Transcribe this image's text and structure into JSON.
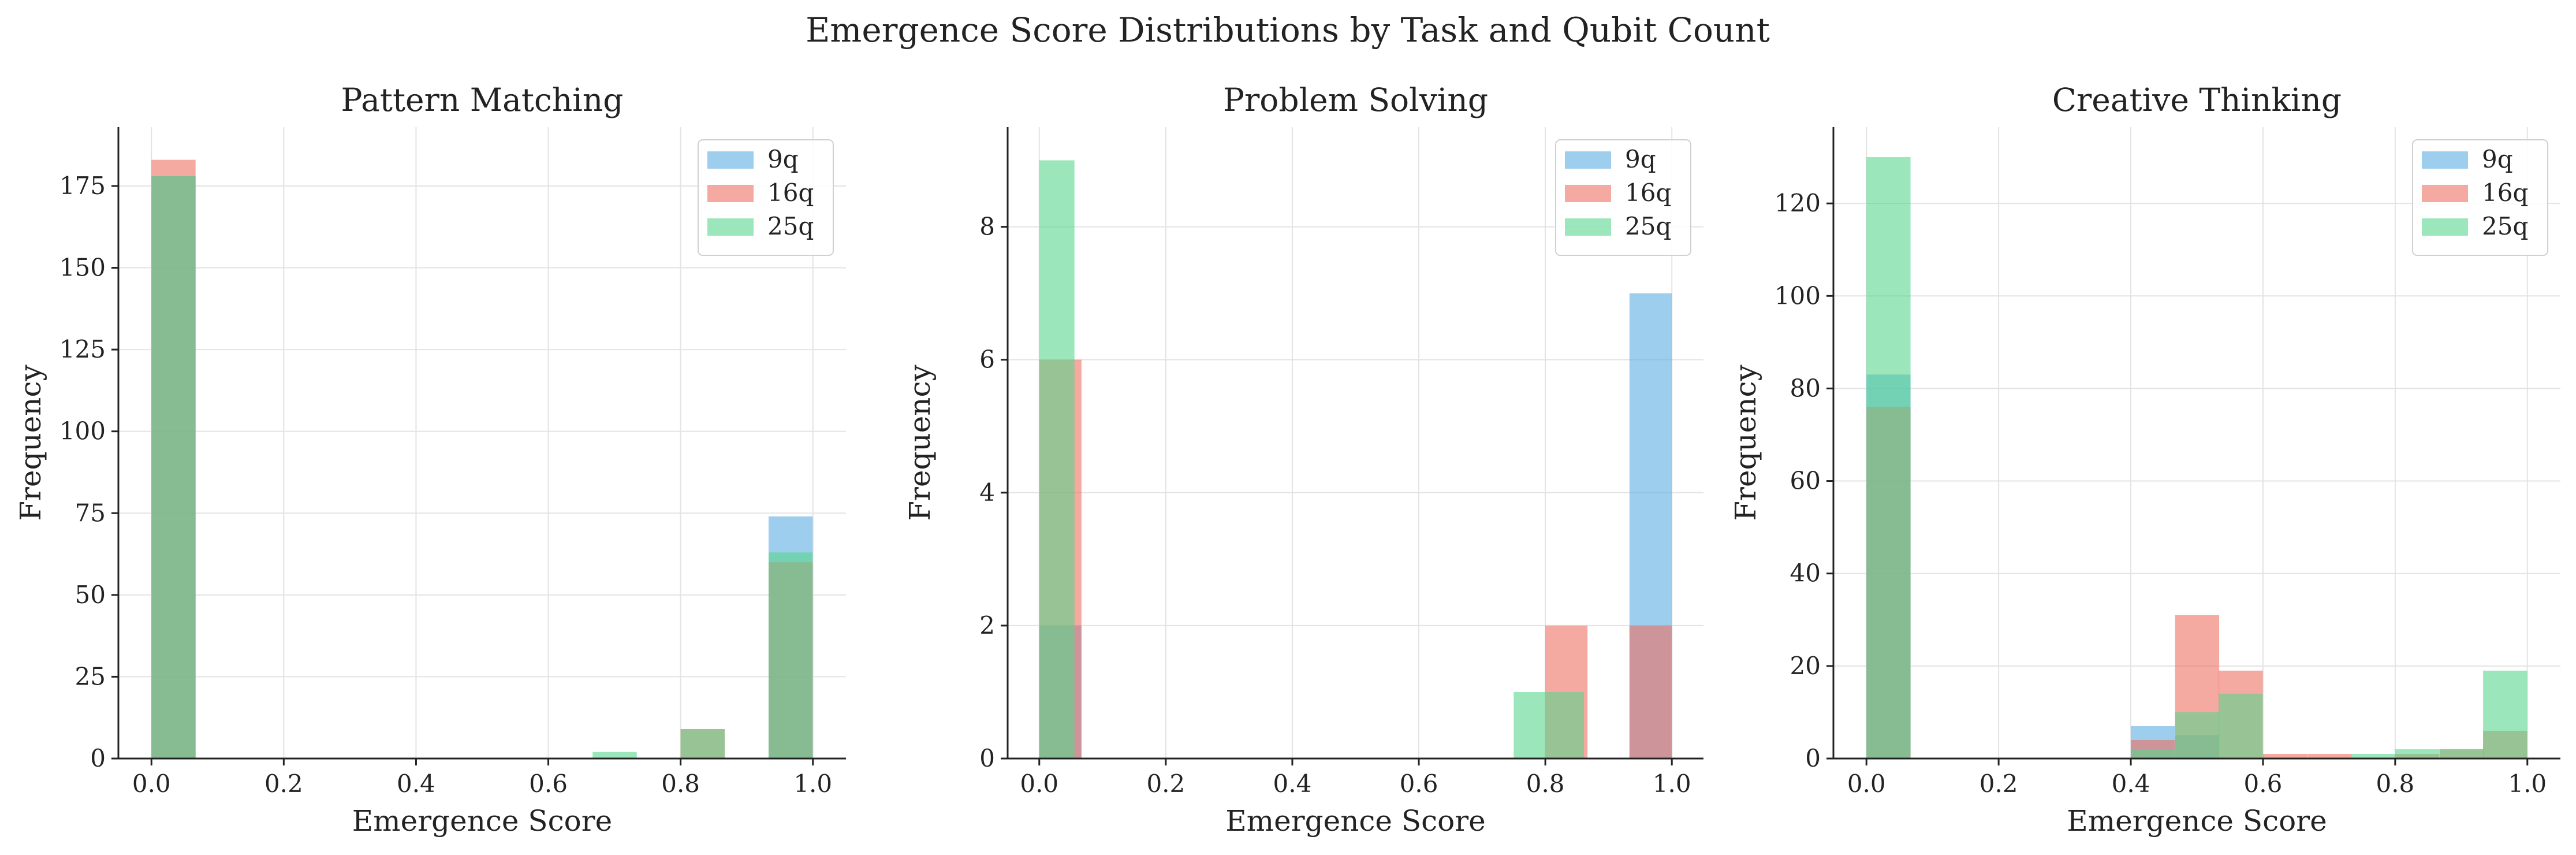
{
  "figure": {
    "title": "Emergence Score Distributions by Task and Qubit Count"
  },
  "colors": {
    "9q": "#5DADE2",
    "16q": "#EC7063",
    "25q": "#58D68D",
    "grid": "#e3e3e3",
    "axis": "#222222"
  },
  "chart_data": [
    {
      "type": "histogram",
      "title": "Pattern Matching",
      "xlabel": "Emergence Score",
      "ylabel": "Frequency",
      "xlim": [
        -0.05,
        1.05
      ],
      "ylim": [
        0,
        193
      ],
      "xticks": [
        0.0,
        0.2,
        0.4,
        0.6,
        0.8,
        1.0
      ],
      "yticks": [
        0,
        25,
        50,
        75,
        100,
        125,
        150,
        175
      ],
      "tick_format": "int",
      "grid": true,
      "legend_position": "top-right",
      "bin_width": 0.0667,
      "series": [
        {
          "name": "9q",
          "color_key": "9q",
          "bins": [
            {
              "x": 0.0,
              "y": 178
            },
            {
              "x": 0.933,
              "y": 74
            }
          ]
        },
        {
          "name": "16q",
          "color_key": "16q",
          "bins": [
            {
              "x": 0.0,
              "y": 183
            },
            {
              "x": 0.8,
              "y": 9
            },
            {
              "x": 0.933,
              "y": 60
            }
          ]
        },
        {
          "name": "25q",
          "color_key": "25q",
          "bins": [
            {
              "x": 0.0,
              "y": 178
            },
            {
              "x": 0.667,
              "y": 2
            },
            {
              "x": 0.8,
              "y": 9
            },
            {
              "x": 0.933,
              "y": 63
            }
          ]
        }
      ]
    },
    {
      "type": "histogram",
      "title": "Problem Solving",
      "xlabel": "Emergence Score",
      "ylabel": "Frequency",
      "xlim": [
        -0.05,
        1.05
      ],
      "ylim": [
        0,
        9.5
      ],
      "xticks": [
        0.0,
        0.2,
        0.4,
        0.6,
        0.8,
        1.0
      ],
      "yticks": [
        0,
        2,
        4,
        6,
        8
      ],
      "tick_format": "int",
      "grid": true,
      "legend_position": "top-right",
      "series": [
        {
          "name": "9q",
          "color_key": "9q",
          "bins": [
            {
              "x0": 0.0,
              "x1": 0.0667,
              "y": 2
            },
            {
              "x0": 0.933,
              "x1": 1.0,
              "y": 7
            }
          ]
        },
        {
          "name": "16q",
          "color_key": "16q",
          "bins": [
            {
              "x0": 0.0,
              "x1": 0.0667,
              "y": 6
            },
            {
              "x0": 0.8,
              "x1": 0.8667,
              "y": 2
            },
            {
              "x0": 0.933,
              "x1": 1.0,
              "y": 2
            }
          ]
        },
        {
          "name": "25q",
          "color_key": "25q",
          "bins": [
            {
              "x0": 0.0,
              "x1": 0.0556,
              "y": 9
            },
            {
              "x0": 0.75,
              "x1": 0.8056,
              "y": 1
            },
            {
              "x0": 0.8056,
              "x1": 0.8611,
              "y": 1
            }
          ]
        }
      ]
    },
    {
      "type": "histogram",
      "title": "Creative Thinking",
      "xlabel": "Emergence Score",
      "ylabel": "Frequency",
      "xlim": [
        -0.05,
        1.05
      ],
      "ylim": [
        0,
        136.5
      ],
      "xticks": [
        0.0,
        0.2,
        0.4,
        0.6,
        0.8,
        1.0
      ],
      "yticks": [
        0,
        20,
        40,
        60,
        80,
        100,
        120
      ],
      "tick_format": "int",
      "grid": true,
      "legend_position": "top-right",
      "bin_width": 0.0667,
      "series": [
        {
          "name": "9q",
          "color_key": "9q",
          "bins": [
            {
              "x": 0.0,
              "y": 83
            },
            {
              "x": 0.4,
              "y": 7
            },
            {
              "x": 0.467,
              "y": 5
            }
          ]
        },
        {
          "name": "16q",
          "color_key": "16q",
          "bins": [
            {
              "x": 0.0,
              "y": 76
            },
            {
              "x": 0.4,
              "y": 4
            },
            {
              "x": 0.467,
              "y": 31
            },
            {
              "x": 0.533,
              "y": 19
            },
            {
              "x": 0.6,
              "y": 1
            },
            {
              "x": 0.667,
              "y": 1
            },
            {
              "x": 0.8,
              "y": 1
            },
            {
              "x": 0.867,
              "y": 2
            },
            {
              "x": 0.933,
              "y": 6
            }
          ]
        },
        {
          "name": "25q",
          "color_key": "25q",
          "bins": [
            {
              "x": 0.0,
              "y": 130
            },
            {
              "x": 0.4,
              "y": 2
            },
            {
              "x": 0.467,
              "y": 10
            },
            {
              "x": 0.533,
              "y": 14
            },
            {
              "x": 0.733,
              "y": 1
            },
            {
              "x": 0.8,
              "y": 2
            },
            {
              "x": 0.867,
              "y": 2
            },
            {
              "x": 0.933,
              "y": 19
            }
          ]
        }
      ]
    }
  ]
}
